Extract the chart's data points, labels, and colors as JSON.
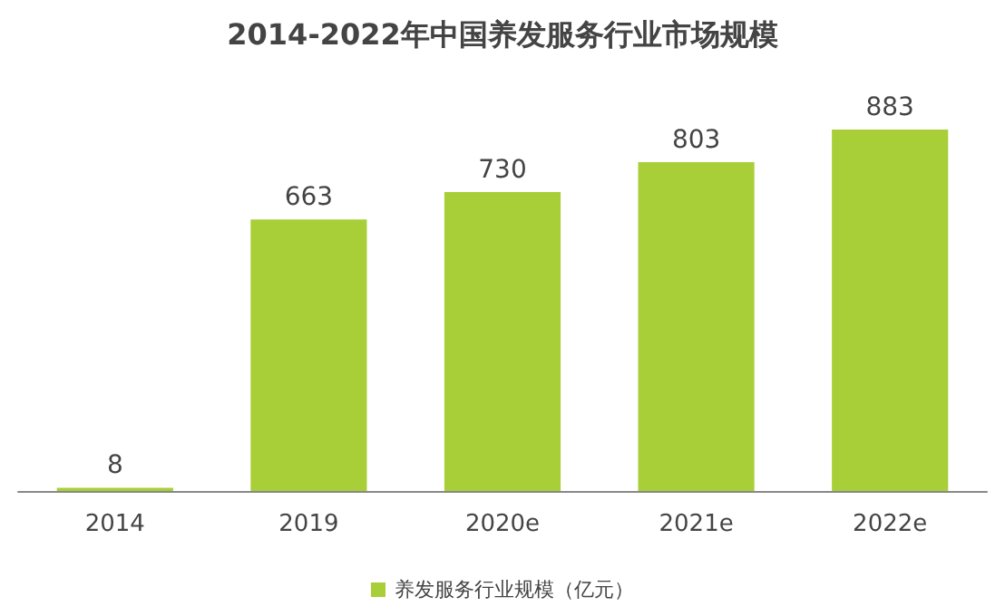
{
  "chart_data": {
    "type": "bar",
    "title": "2014-2022年中国养发服务行业市场规模",
    "categories": [
      "2014",
      "2019",
      "2020e",
      "2021e",
      "2022e"
    ],
    "series": [
      {
        "name": "养发服务行业规模（亿元）",
        "color": "#a9cf38",
        "values": [
          8,
          663,
          730,
          803,
          883
        ]
      }
    ],
    "data_labels": true,
    "legend": "bottom"
  }
}
